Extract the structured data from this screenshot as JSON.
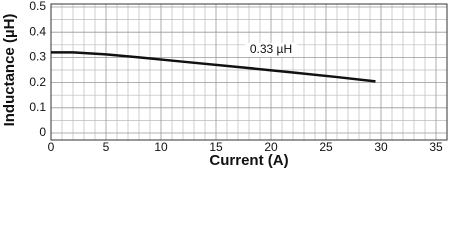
{
  "chart_data": {
    "type": "line",
    "x_label": "Current (A)",
    "y_label": "Inductance (µH)",
    "annotation": {
      "text": "0.33 µH",
      "x": 20,
      "y": 0.33
    },
    "x": [
      0,
      2,
      5,
      8,
      12,
      17,
      22,
      26,
      29.5
    ],
    "series": [
      {
        "name": "Inductance",
        "color": "#111111",
        "values": [
          0.32,
          0.32,
          0.312,
          0.3,
          0.283,
          0.262,
          0.24,
          0.222,
          0.205
        ]
      }
    ],
    "xlim": [
      0,
      36
    ],
    "xticks": [
      0,
      5,
      10,
      15,
      20,
      25,
      30,
      35
    ],
    "ylim": [
      0,
      0.5
    ],
    "yticks": [
      0,
      0.1,
      0.2,
      0.3,
      0.4,
      0.5
    ],
    "grid": true
  }
}
